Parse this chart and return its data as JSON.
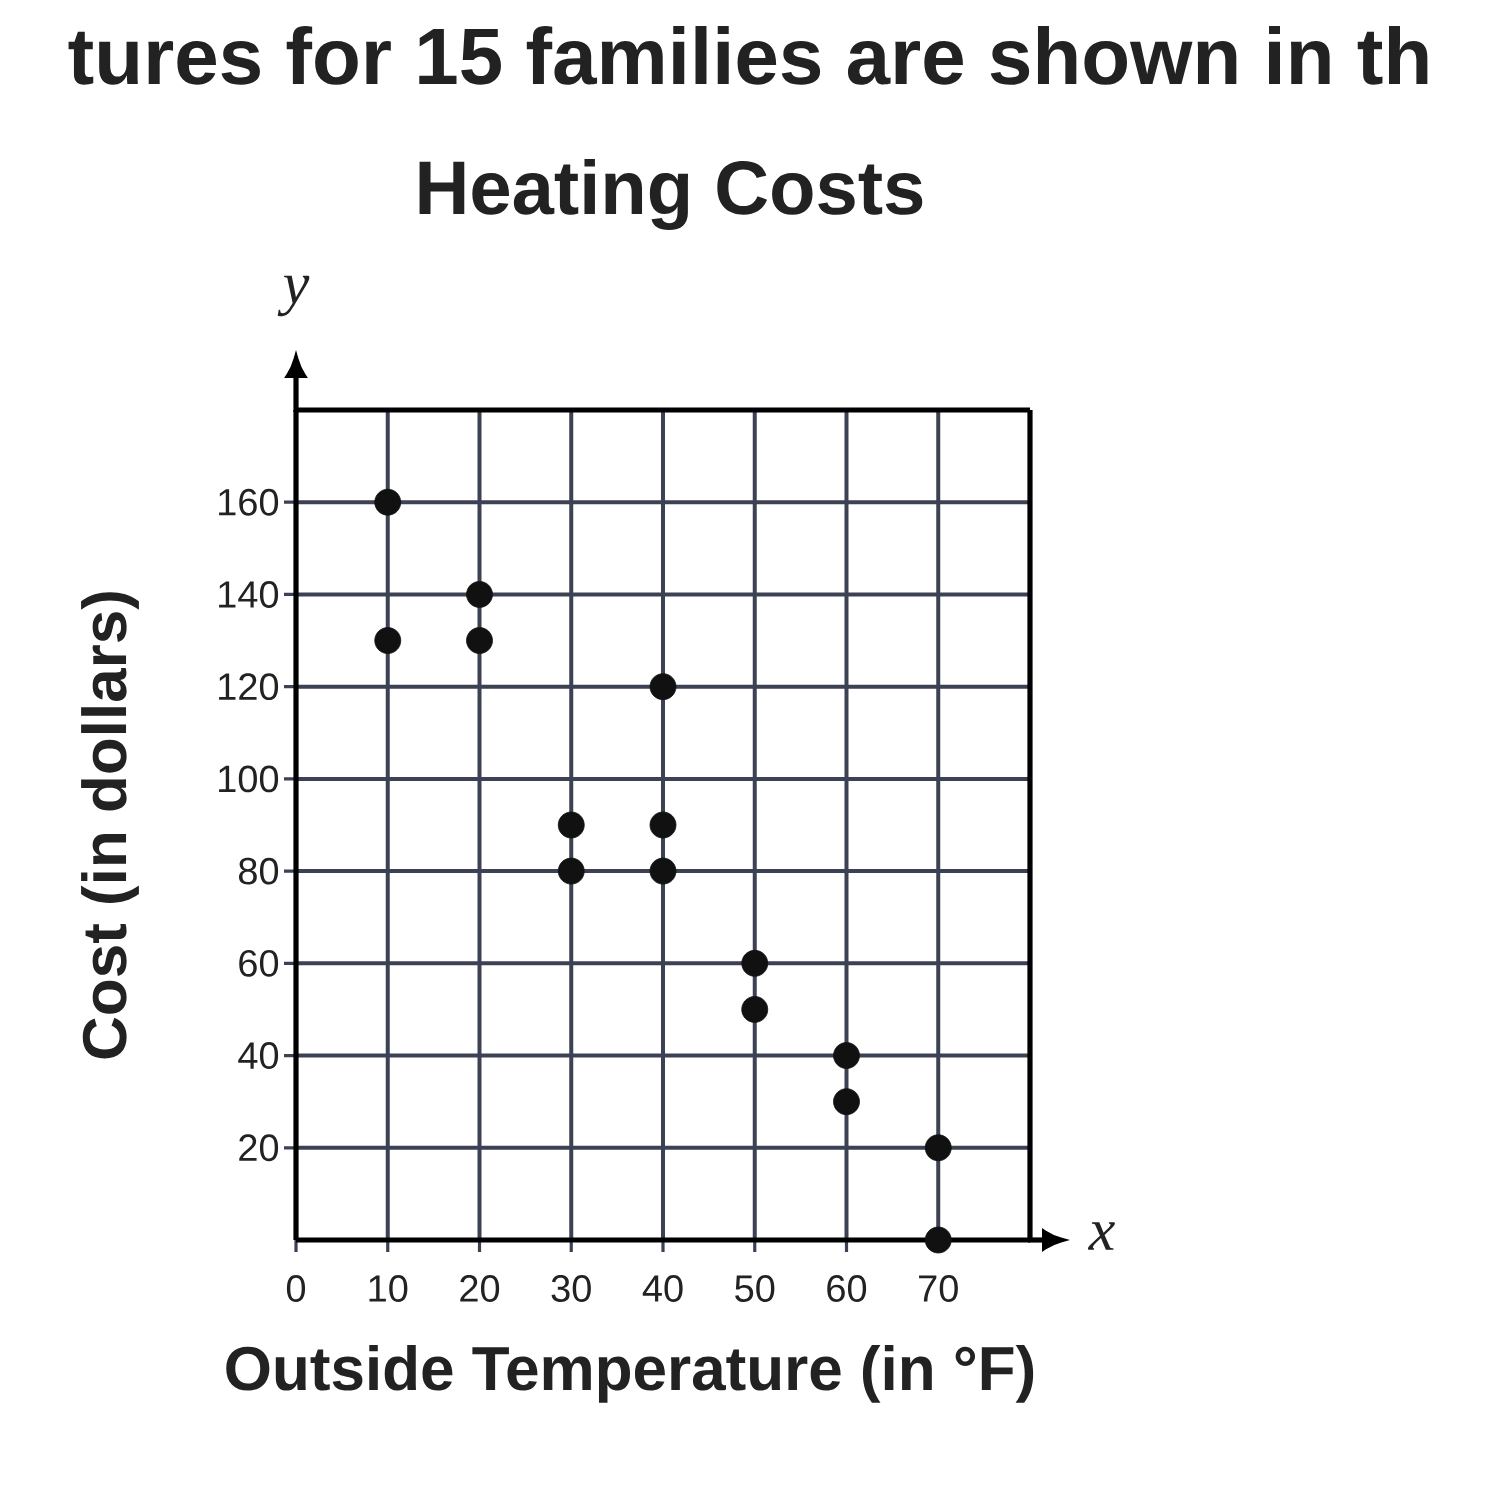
{
  "chart_data": {
    "type": "scatter",
    "title": "Heating Costs",
    "xlabel": "Outside Temperature (in °F)",
    "ylabel": "Cost (in dollars)",
    "annotations": [
      "tures for 15 families are shown in th",
      "y",
      "x"
    ],
    "x": [
      10,
      10,
      20,
      20,
      30,
      30,
      40,
      40,
      40,
      50,
      50,
      60,
      60,
      70,
      70
    ],
    "values": [
      160,
      130,
      140,
      130,
      90,
      80,
      120,
      90,
      80,
      60,
      50,
      40,
      30,
      20,
      0
    ],
    "color": "#111111",
    "marker": "circle",
    "grid": true,
    "xlim": [
      0,
      80
    ],
    "ylim": [
      0,
      180
    ],
    "xticks": [
      0,
      10,
      20,
      30,
      40,
      50,
      60,
      70
    ],
    "yticks": [
      20,
      40,
      60,
      80,
      100,
      120,
      140,
      160
    ]
  }
}
